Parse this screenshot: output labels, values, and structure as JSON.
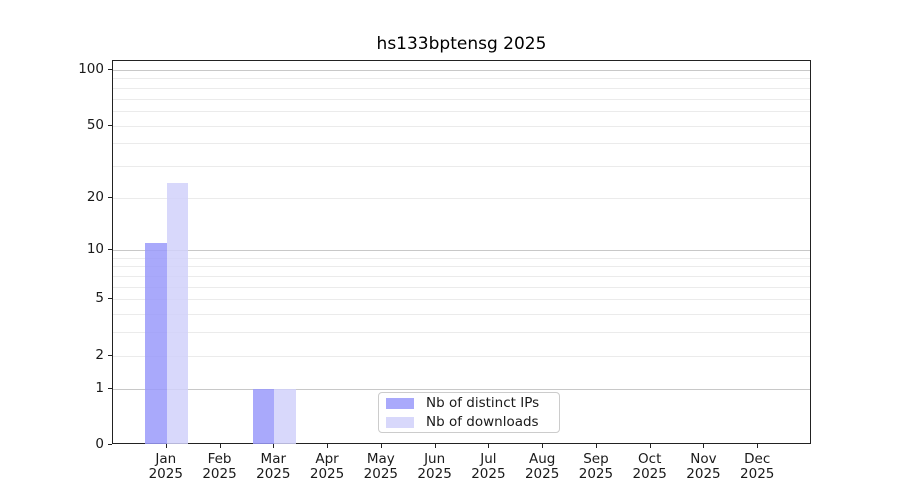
{
  "chart_data": {
    "type": "bar",
    "title": "hs133bptensg 2025",
    "yscale": "log1p",
    "ylim": [
      0,
      100
    ],
    "yticks": [
      0,
      1,
      2,
      5,
      10,
      20,
      50,
      100
    ],
    "grid": {
      "major": [
        1,
        10,
        100
      ],
      "minor": [
        2,
        3,
        4,
        5,
        6,
        7,
        8,
        9,
        20,
        30,
        40,
        50,
        60,
        70,
        80,
        90
      ]
    },
    "categories": [
      {
        "month": "Jan",
        "year": "2025"
      },
      {
        "month": "Feb",
        "year": "2025"
      },
      {
        "month": "Mar",
        "year": "2025"
      },
      {
        "month": "Apr",
        "year": "2025"
      },
      {
        "month": "May",
        "year": "2025"
      },
      {
        "month": "Jun",
        "year": "2025"
      },
      {
        "month": "Jul",
        "year": "2025"
      },
      {
        "month": "Aug",
        "year": "2025"
      },
      {
        "month": "Sep",
        "year": "2025"
      },
      {
        "month": "Oct",
        "year": "2025"
      },
      {
        "month": "Nov",
        "year": "2025"
      },
      {
        "month": "Dec",
        "year": "2025"
      }
    ],
    "series": [
      {
        "name": "Nb of distinct IPs",
        "color": "#9a9afa",
        "values": [
          11,
          0,
          1,
          0,
          0,
          0,
          0,
          0,
          0,
          0,
          0,
          0
        ]
      },
      {
        "name": "Nb of downloads",
        "color": "#d1d1fa",
        "values": [
          24,
          0,
          1,
          0,
          0,
          0,
          0,
          0,
          0,
          0,
          0,
          0
        ]
      }
    ],
    "legend_position": "bottom-center"
  }
}
